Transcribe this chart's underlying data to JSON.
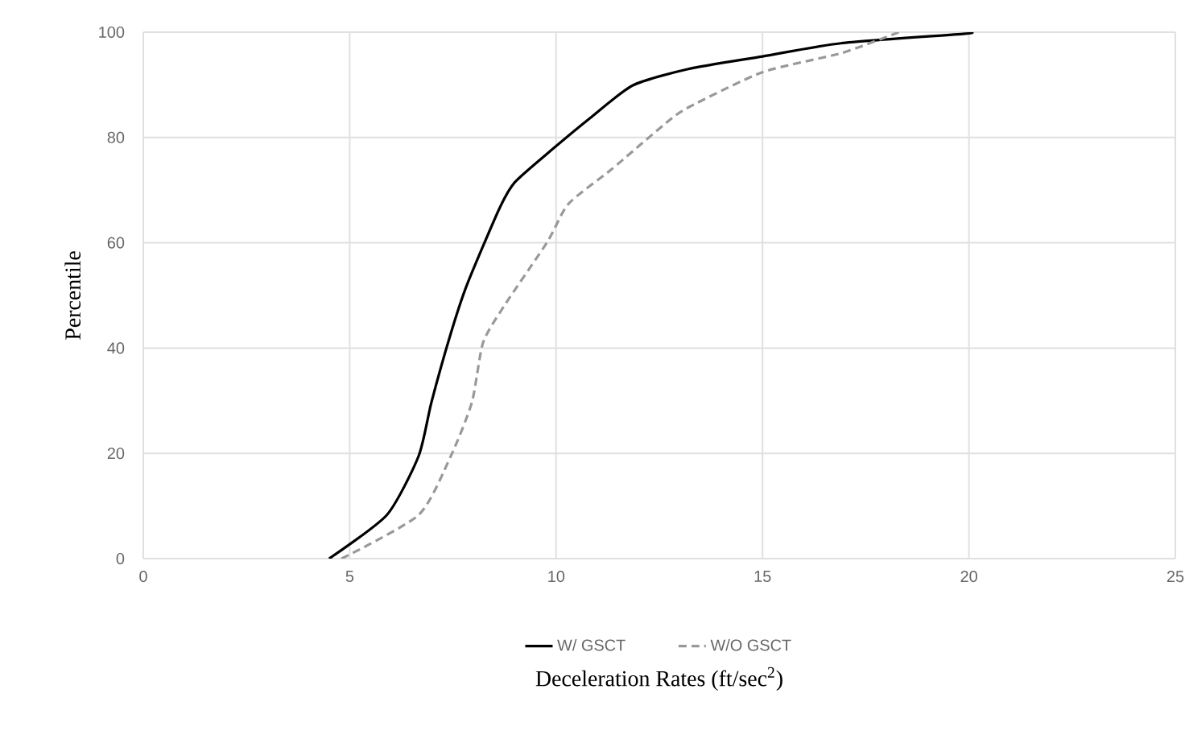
{
  "chart_data": {
    "type": "line",
    "xlabel": "Deceleration Rates (ft/sec$^{2}$)",
    "ylabel": "Percentile",
    "xlim": [
      0,
      25
    ],
    "xticks": [
      0,
      5,
      10,
      15,
      20,
      25
    ],
    "ylim": [
      0,
      100
    ],
    "yticks": [
      0,
      20,
      40,
      60,
      80,
      100
    ],
    "grid": true,
    "legend": "bottom",
    "marker": "none",
    "series": [
      {
        "name": "W/ GSCT",
        "color": "#000000",
        "line_style": "solid",
        "x": [
          4.5,
          5.9,
          6.67,
          6.98,
          7.45,
          7.84,
          8.62,
          9.0,
          9.9,
          10.84,
          11.86,
          13.2,
          15,
          16.9,
          19.9,
          20
        ],
        "values": [
          0,
          8.3,
          19.5,
          29.7,
          42.8,
          52,
          66.4,
          71.5,
          77.7,
          83.8,
          89.9,
          93,
          95.4,
          97.9,
          99.7,
          100
        ]
      },
      {
        "name": "W/O GSCT",
        "color": "#999999",
        "line_style": "dashed",
        "x": [
          4.8,
          6.67,
          7.45,
          7.96,
          8.23,
          8.74,
          9.79,
          10.3,
          11.35,
          12.64,
          13.2,
          15,
          16.9,
          18.1,
          18.3
        ],
        "values": [
          0,
          8.3,
          19.5,
          29.7,
          41,
          48,
          60.2,
          67.4,
          74,
          82.6,
          85.7,
          92.4,
          96,
          99.4,
          100
        ]
      }
    ]
  }
}
